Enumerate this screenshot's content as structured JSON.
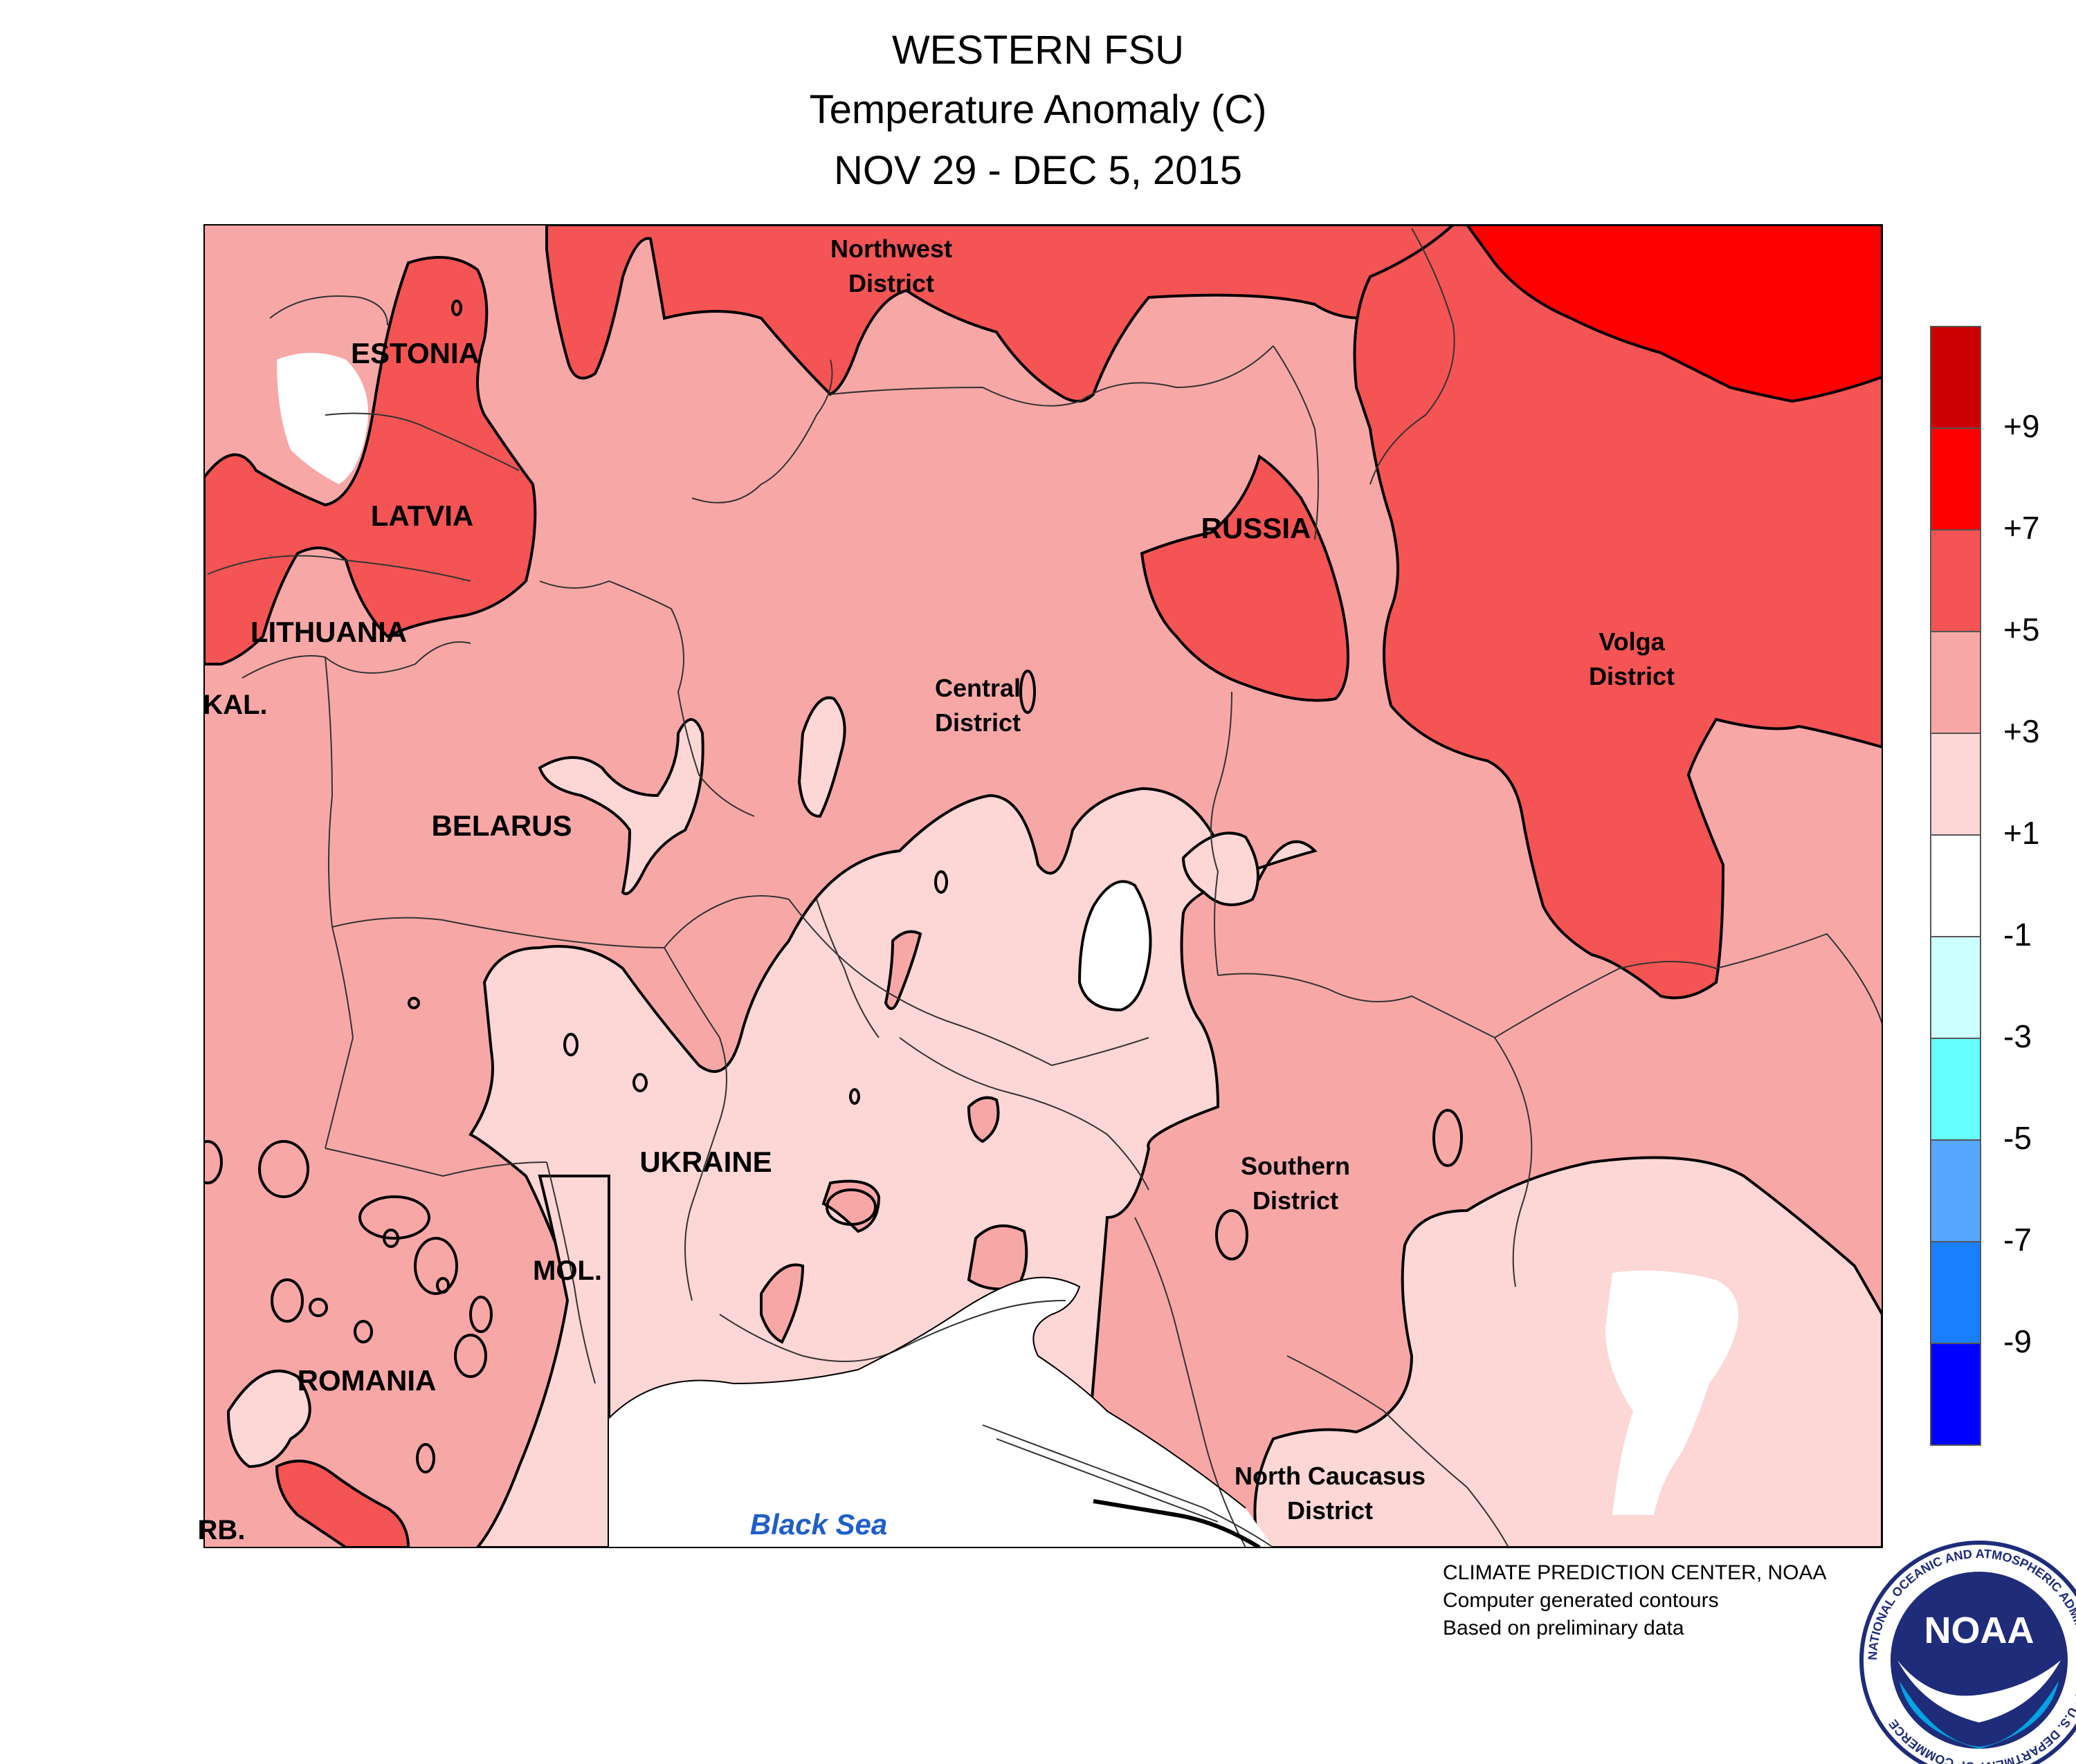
{
  "title": {
    "line1": "WESTERN FSU",
    "line2": "Temperature Anomaly (C)",
    "line3": "NOV 29 - DEC 5, 2015"
  },
  "map_labels": {
    "northwest": [
      "Northwest",
      "District"
    ],
    "estonia": "ESTONIA",
    "latvia": "LATVIA",
    "lithuania": "LITHUANIA",
    "kal": "KAL.",
    "belarus": "BELARUS",
    "russia": "RUSSIA",
    "central": [
      "Central",
      "District"
    ],
    "volga": [
      "Volga",
      "District"
    ],
    "ukraine": "UKRAINE",
    "southern": [
      "Southern",
      "District"
    ],
    "mol": "MOL.",
    "romania": "ROMANIA",
    "srb": "RB.",
    "north_caucasus": [
      "North Caucasus",
      "District"
    ],
    "black_sea": "Black Sea"
  },
  "legend": {
    "ticks": [
      "+9",
      "+7",
      "+5",
      "+3",
      "+1",
      "-1",
      "-3",
      "-5",
      "-7",
      "-9"
    ],
    "colors": [
      "#CC0000",
      "#FF0000",
      "#F55454",
      "#F8A7A7",
      "#FDD6D6",
      "#FFFFFF",
      "#CCFFFF",
      "#66FFFF",
      "#57A6FF",
      "#1A7FFF",
      "#0000FF"
    ]
  },
  "anomaly_colors": {
    "plus1_to_plus3": "#FDD6D6",
    "plus3_to_plus5": "#F8A7A7",
    "plus5_to_plus7": "#F55454",
    "plus7_to_plus9": "#FF0000",
    "minus1_to_plus1": "#FFFFFF"
  },
  "credits": {
    "line1": "CLIMATE PREDICTION CENTER, NOAA",
    "line2": "Computer generated contours",
    "line3": "Based on preliminary data"
  },
  "logo": {
    "text": "NOAA",
    "ring_text": "NATIONAL OCEANIC AND ATMOSPHERIC ADMINISTRATION · U.S. DEPARTMENT OF COMMERCE"
  }
}
